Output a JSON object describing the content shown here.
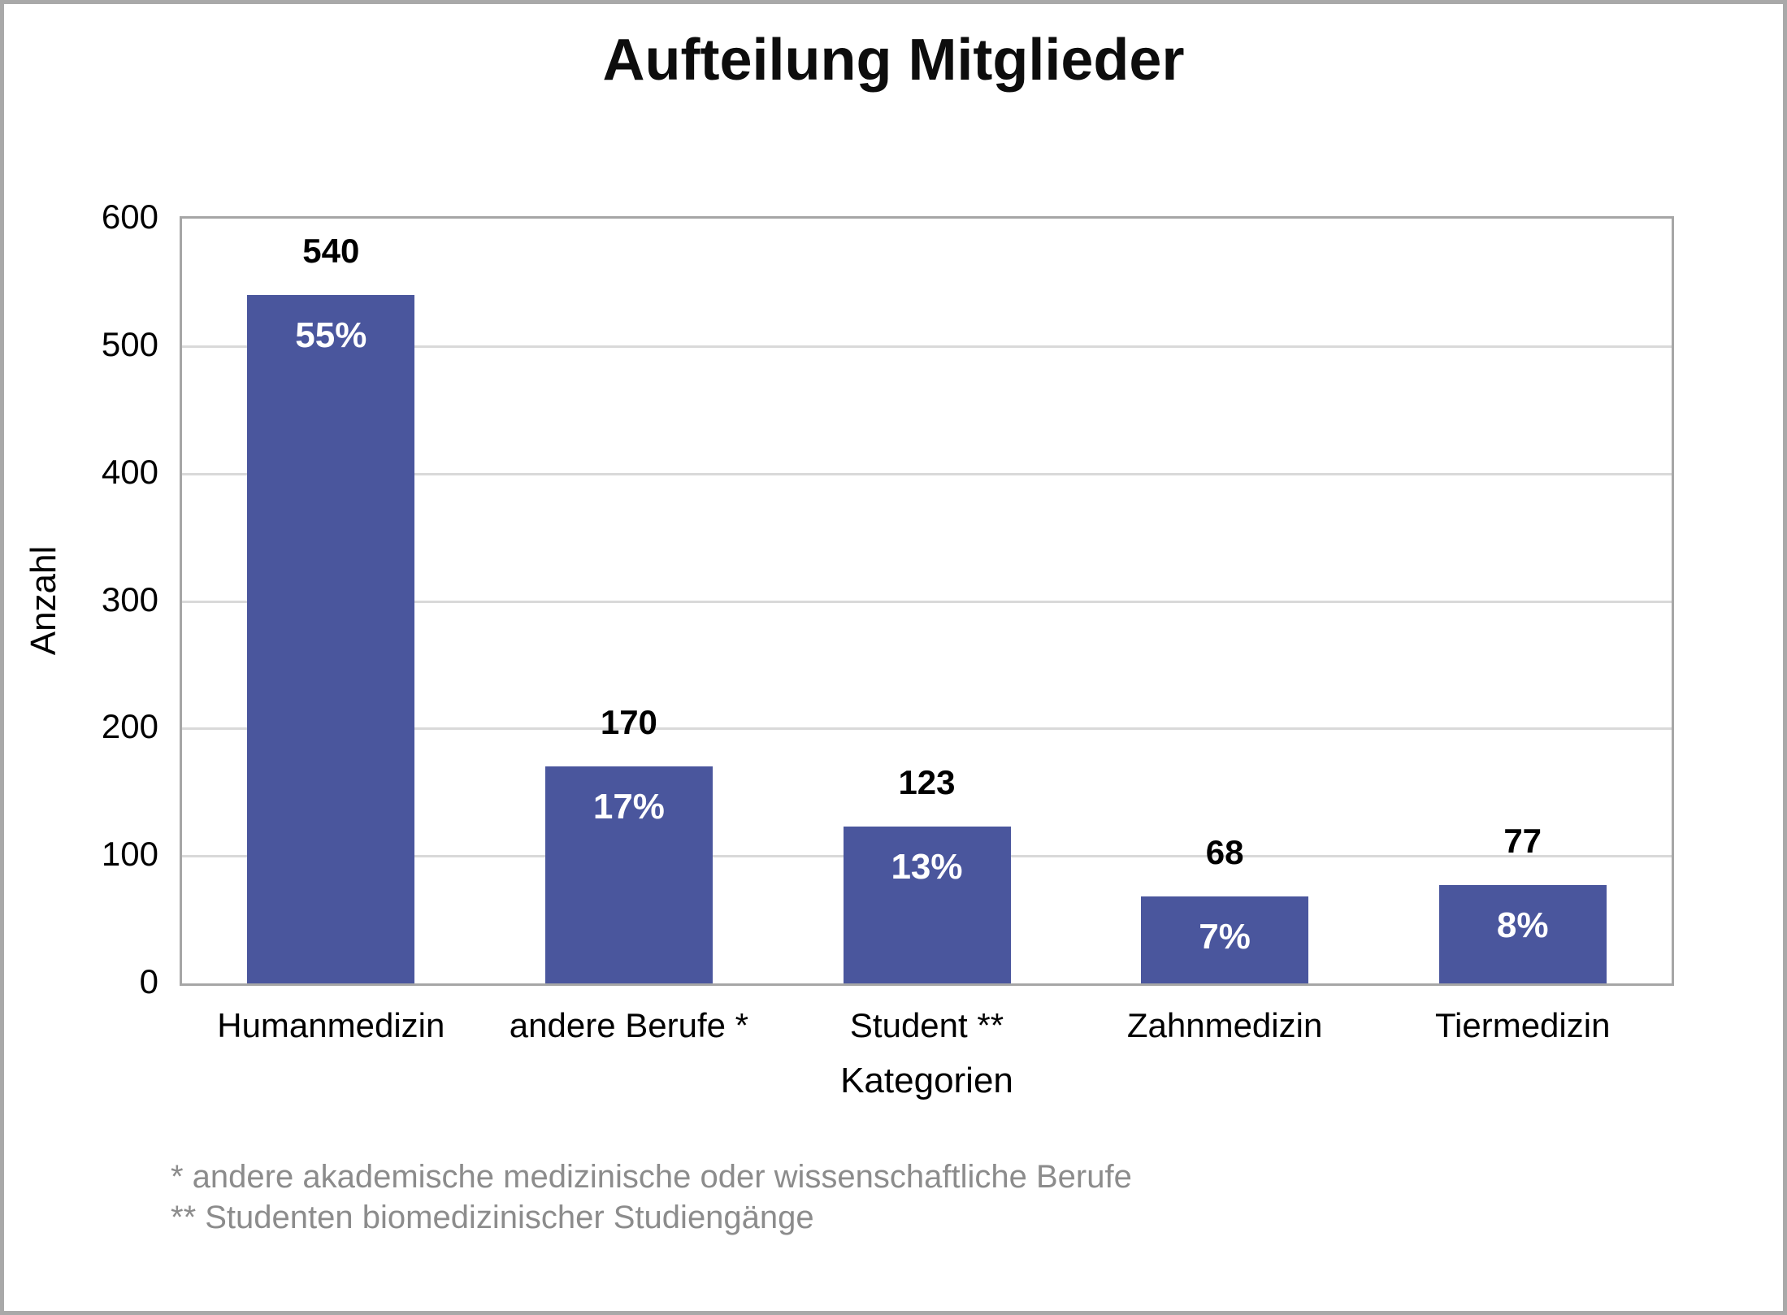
{
  "header": {
    "title": "Aufteilung Mitglieder"
  },
  "chart_data": {
    "type": "bar",
    "title": "Aufteilung Mitglieder",
    "categories": [
      "Humanmedizin",
      "andere Berufe *",
      "Student **",
      "Zahnmedizin",
      "Tiermedizin"
    ],
    "values": [
      540,
      170,
      123,
      68,
      77
    ],
    "percent_labels": [
      "55%",
      "17%",
      "13%",
      "7%",
      "8%"
    ],
    "xlabel": "Kategorien",
    "ylabel": "Anzahl",
    "ylim": [
      0,
      600
    ],
    "yticks": [
      0,
      100,
      200,
      300,
      400,
      500,
      600
    ],
    "grid": "horizontal",
    "legend": "none",
    "bar_color": "#4a569d"
  },
  "colors": {
    "bar": "#4a569d",
    "gridline": "#d9d9d9",
    "plot_border": "#a6a6a6",
    "outer_border": "#a9a9a9",
    "value_label": "#000000",
    "percent_label": "#ffffff",
    "footnote": "#8c8c8c"
  },
  "footnotes": [
    "* andere akademische medizinische oder wissenschaftliche Berufe",
    "** Studenten biomedizinischer Studiengänge"
  ]
}
